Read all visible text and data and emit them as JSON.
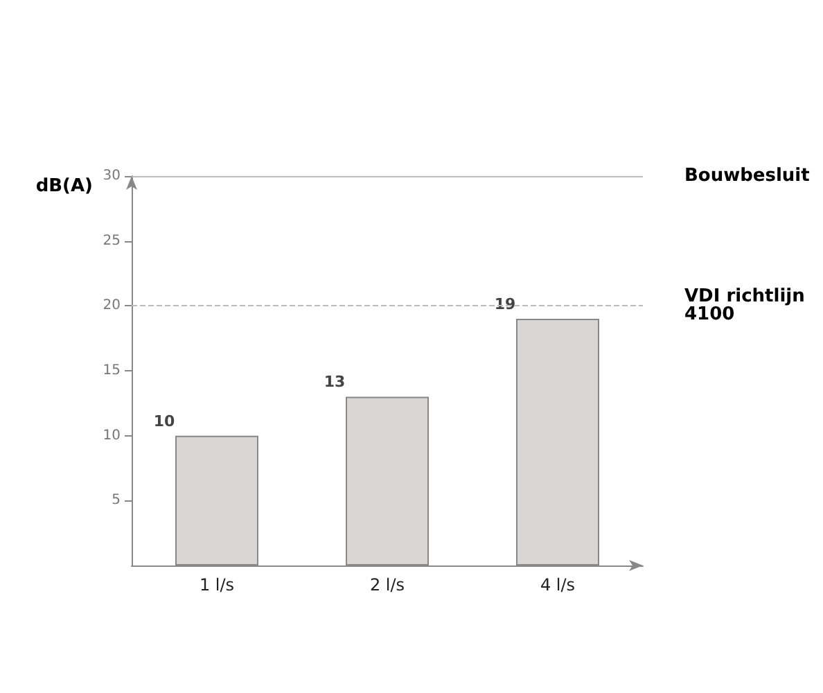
{
  "chart_data": {
    "type": "bar",
    "ylabel": "dB(A)",
    "categories": [
      "1 l/s",
      "2 l/s",
      "4 l/s"
    ],
    "series": [
      {
        "color": "#d9d6d6",
        "values": [
          10,
          13,
          19
        ]
      }
    ],
    "ylim": [
      0,
      30
    ],
    "yticks": [
      5,
      10,
      15,
      20,
      25,
      30
    ],
    "data_labels": true,
    "grid": false,
    "ref_lines": [
      {
        "axis": "y",
        "value": 30,
        "label": "Bouwbesluit",
        "color": "#bbbbbb",
        "line_style": "solid"
      },
      {
        "axis": "y",
        "value": 20,
        "label": "VDI richtlijn 4100",
        "color": "#bbbbbb",
        "line_style": "dashed"
      }
    ]
  }
}
